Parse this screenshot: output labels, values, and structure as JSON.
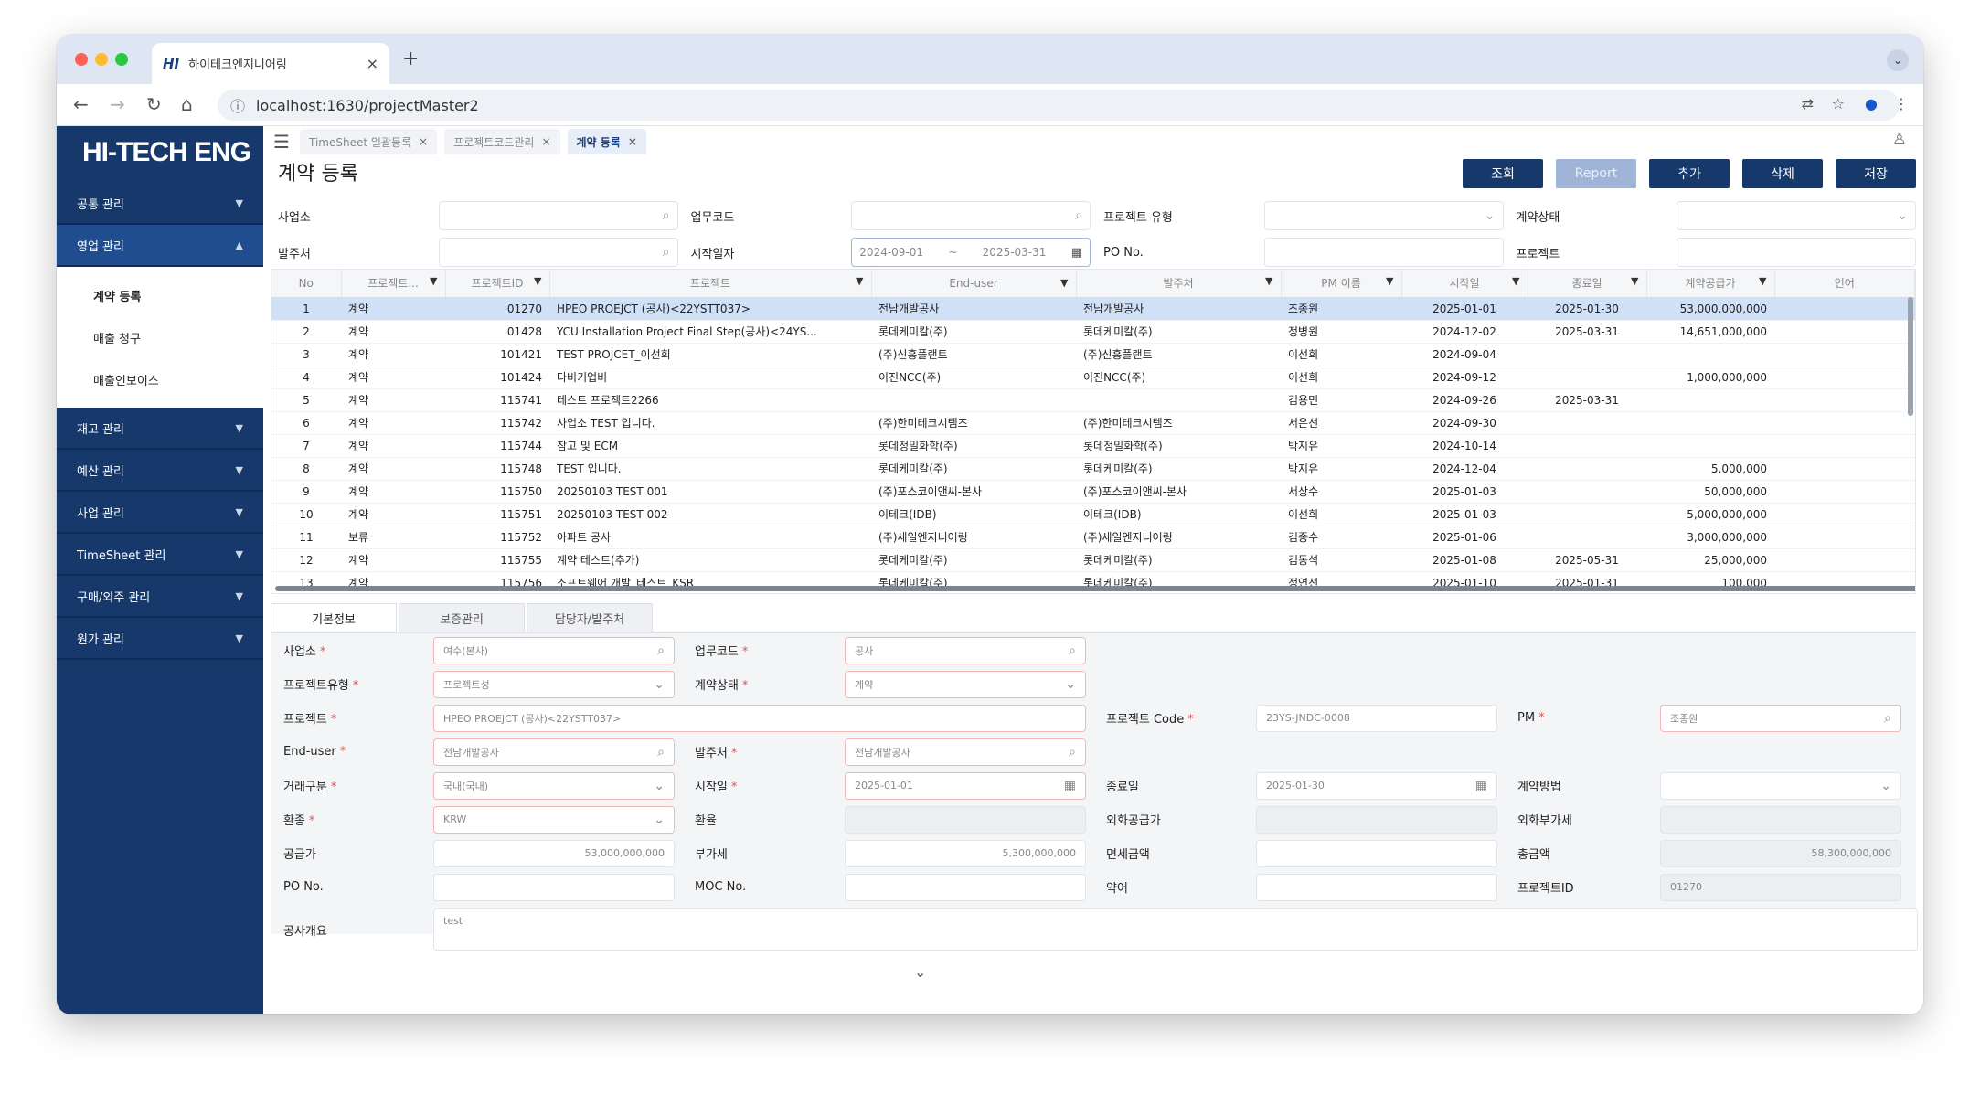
{
  "browser": {
    "tab_title": "하이테크엔지니어링",
    "favicon": "HI",
    "url": "localhost:1630/projectMaster2",
    "new_tab": "+",
    "tab_close": "×"
  },
  "sidebar": {
    "logo": "HI-TECH ENG",
    "menus": [
      {
        "label": "공통 관리",
        "expanded": false
      },
      {
        "label": "영업 관리",
        "expanded": true
      },
      {
        "label": "재고 관리",
        "expanded": false
      },
      {
        "label": "예산 관리",
        "expanded": false
      },
      {
        "label": "사업 관리",
        "expanded": false
      },
      {
        "label": "TimeSheet 관리",
        "expanded": false
      },
      {
        "label": "구매/외주 관리",
        "expanded": false
      },
      {
        "label": "원가 관리",
        "expanded": false
      }
    ],
    "submenu": [
      "계약 등록",
      "매출 청구",
      "매출인보이스"
    ]
  },
  "app_tabs": [
    {
      "label": "TimeSheet 일괄등록"
    },
    {
      "label": "프로젝트코드관리"
    },
    {
      "label": "계약 등록"
    }
  ],
  "page_title": "계약 등록",
  "actions": {
    "search": "조회",
    "report": "Report",
    "add": "추가",
    "delete": "삭제",
    "save": "저장"
  },
  "filters": {
    "business": "사업소",
    "work_code": "업무코드",
    "project_type": "프로젝트 유형",
    "contract_status": "계약상태",
    "client": "발주처",
    "start_date": "시작일자",
    "date_from": "2024-09-01",
    "date_sep": "~",
    "date_to": "2025-03-31",
    "po_no": "PO No.",
    "project": "프로젝트"
  },
  "grid": {
    "columns": [
      "No",
      "프로젝트...",
      "프로젝트ID",
      "프로젝트",
      "End-user",
      "발주처",
      "PM 이름",
      "시작일",
      "종료일",
      "계약공급가",
      "언어"
    ],
    "rows": [
      {
        "no": "1",
        "type": "계약",
        "id": "01270",
        "project": "HPEO PROEJCT (공사)<22YSTT037>",
        "end_user": "전남개발공사",
        "client": "전남개발공사",
        "pm": "조종원",
        "start": "2025-01-01",
        "end": "2025-01-30",
        "amount": "53,000,000,000"
      },
      {
        "no": "2",
        "type": "계약",
        "id": "01428",
        "project": "YCU Installation Project Final Step(공사)<24YS...",
        "end_user": "롯데케미칼(주)",
        "client": "롯데케미칼(주)",
        "pm": "정병원",
        "start": "2024-12-02",
        "end": "2025-03-31",
        "amount": "14,651,000,000"
      },
      {
        "no": "3",
        "type": "계약",
        "id": "101421",
        "project": "TEST PROJCET_이선희",
        "end_user": "(주)신흥플랜트",
        "client": "(주)신흥플랜트",
        "pm": "이선희",
        "start": "2024-09-04",
        "end": "",
        "amount": ""
      },
      {
        "no": "4",
        "type": "계약",
        "id": "101424",
        "project": "다비기업비",
        "end_user": "이진NCC(주)",
        "client": "이진NCC(주)",
        "pm": "이선희",
        "start": "2024-09-12",
        "end": "",
        "amount": "1,000,000,000"
      },
      {
        "no": "5",
        "type": "계약",
        "id": "115741",
        "project": "테스트 프로젝트2266",
        "end_user": "",
        "client": "",
        "pm": "김용민",
        "start": "2024-09-26",
        "end": "2025-03-31",
        "amount": ""
      },
      {
        "no": "6",
        "type": "계약",
        "id": "115742",
        "project": "사업소 TEST 입니다.",
        "end_user": "(주)한미테크시템즈",
        "client": "(주)한미테크시템즈",
        "pm": "서은선",
        "start": "2024-09-30",
        "end": "",
        "amount": ""
      },
      {
        "no": "7",
        "type": "계약",
        "id": "115744",
        "project": "참고 및 ECM",
        "end_user": "롯데정밀화학(주)",
        "client": "롯데정밀화학(주)",
        "pm": "박지유",
        "start": "2024-10-14",
        "end": "",
        "amount": ""
      },
      {
        "no": "8",
        "type": "계약",
        "id": "115748",
        "project": "TEST 입니다.",
        "end_user": "롯데케미칼(주)",
        "client": "롯데케미칼(주)",
        "pm": "박지유",
        "start": "2024-12-04",
        "end": "",
        "amount": "5,000,000"
      },
      {
        "no": "9",
        "type": "계약",
        "id": "115750",
        "project": "20250103 TEST 001",
        "end_user": "(주)포스코이앤씨-본사",
        "client": "(주)포스코이앤씨-본사",
        "pm": "서상수",
        "start": "2025-01-03",
        "end": "",
        "amount": "50,000,000"
      },
      {
        "no": "10",
        "type": "계약",
        "id": "115751",
        "project": "20250103 TEST 002",
        "end_user": "이테크(IDB)",
        "client": "이테크(IDB)",
        "pm": "이선희",
        "start": "2025-01-03",
        "end": "",
        "amount": "5,000,000,000"
      },
      {
        "no": "11",
        "type": "보류",
        "id": "115752",
        "project": "아파트 공사",
        "end_user": "(주)세일엔지니어링",
        "client": "(주)세일엔지니어링",
        "pm": "김종수",
        "start": "2025-01-06",
        "end": "",
        "amount": "3,000,000,000"
      },
      {
        "no": "12",
        "type": "계약",
        "id": "115755",
        "project": "계약 테스트(추가)",
        "end_user": "롯데케미칼(주)",
        "client": "롯데케미칼(주)",
        "pm": "김동석",
        "start": "2025-01-08",
        "end": "2025-05-31",
        "amount": "25,000,000"
      },
      {
        "no": "13",
        "type": "계약",
        "id": "115756",
        "project": "소프트웨어 개발_테스트_KSR",
        "end_user": "롯데케미칼(주)",
        "client": "롯데케미칼(주)",
        "pm": "정연선",
        "start": "2025-01-10",
        "end": "2025-01-31",
        "amount": "100,000"
      }
    ]
  },
  "detail_tabs": [
    "기본정보",
    "보증관리",
    "담당자/발주처"
  ],
  "detail": {
    "business_label": "사업소",
    "business_value": "여수(본사)",
    "work_code_label": "업무코드",
    "work_code_value": "공사",
    "project_type_label": "프로젝트유형",
    "project_type_value": "프로젝트성",
    "contract_status_label": "계약상태",
    "contract_status_value": "계약",
    "project_label": "프로젝트",
    "project_value": "HPEO PROEJCT (공사)<22YSTT037>",
    "project_code_label": "프로젝트 Code",
    "project_code_value": "23YS-JNDC-0008",
    "pm_label": "PM",
    "pm_value": "조종원",
    "end_user_label": "End-user",
    "end_user_value": "전남개발공사",
    "client_label": "발주처",
    "client_value": "전남개발공사",
    "trade_type_label": "거래구분",
    "trade_type_value": "국내(국내)",
    "start_label": "시작일",
    "start_value": "2025-01-01",
    "end_label": "종료일",
    "end_value": "2025-01-30",
    "contract_method_label": "계약방법",
    "currency_label": "환종",
    "currency_value": "KRW",
    "rate_label": "환율",
    "foreign_supply_label": "외화공급가",
    "foreign_vat_label": "외화부가세",
    "supply_label": "공급가",
    "supply_value": "53,000,000,000",
    "vat_label": "부가세",
    "vat_value": "5,300,000,000",
    "tax_exempt_label": "면세금액",
    "total_label": "총금액",
    "total_value": "58,300,000,000",
    "po_label": "PO No.",
    "moc_label": "MOC No.",
    "abbr_label": "약어",
    "project_id_label": "프로젝트ID",
    "project_id_value": "01270",
    "summary_label": "공사개요",
    "summary_value": "test"
  }
}
